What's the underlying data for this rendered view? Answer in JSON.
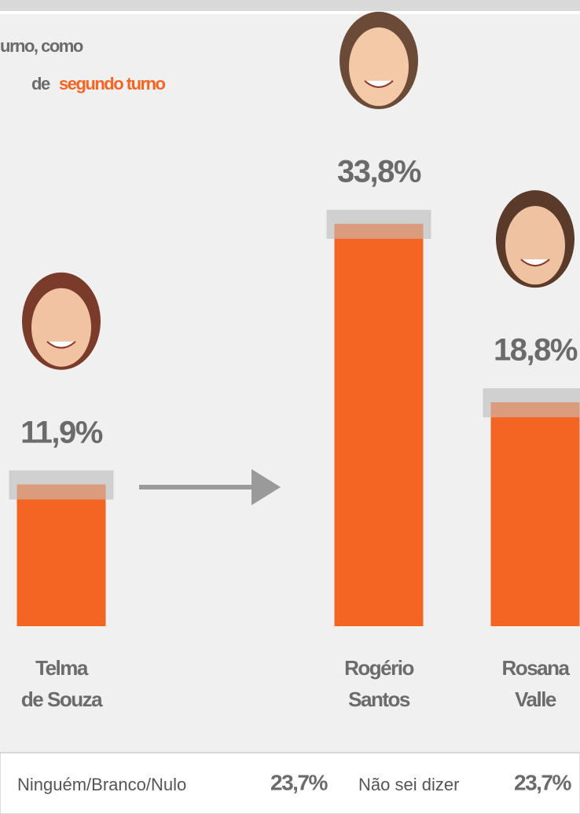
{
  "chart_data": {
    "type": "bar",
    "title_line1": "urno, como",
    "title_line2": "de",
    "title_highlight": "segundo turno",
    "categories": [
      [
        "Telma",
        "de Souza"
      ],
      [
        "Rogério",
        "Santos"
      ],
      [
        "Rosana",
        "Valle"
      ]
    ],
    "values": [
      11.9,
      33.8,
      18.8
    ],
    "value_labels": [
      "11,9%",
      "33,8%",
      "18,8%"
    ],
    "color": "#f26522",
    "ylim": [
      0,
      40
    ],
    "footer": [
      {
        "label": "Ninguém/Branco/Nulo",
        "value": 23.7,
        "value_label": "23,7%"
      },
      {
        "label": "Não sei dizer",
        "value": 23.7,
        "value_label": "23,7%"
      }
    ]
  }
}
